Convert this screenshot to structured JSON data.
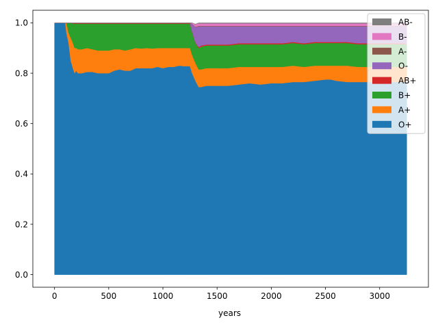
{
  "chart_data": {
    "type": "area",
    "stacked": true,
    "title": "",
    "xlabel": "years",
    "ylabel": "",
    "xlim": [
      -200,
      3450
    ],
    "ylim": [
      -0.05,
      1.05
    ],
    "xticks": [
      0,
      500,
      1000,
      1500,
      2000,
      2500,
      3000
    ],
    "xtick_labels": [
      "0",
      "500",
      "1000",
      "1500",
      "2000",
      "2500",
      "3000"
    ],
    "yticks": [
      0.0,
      0.2,
      0.4,
      0.6,
      0.8,
      1.0
    ],
    "ytick_labels": [
      "0.0",
      "0.2",
      "0.4",
      "0.6",
      "0.8",
      "1.0"
    ],
    "grid": false,
    "legend_position": "top-right",
    "x": [
      0,
      100,
      110,
      130,
      150,
      170,
      185,
      200,
      215,
      230,
      250,
      300,
      350,
      400,
      450,
      500,
      550,
      600,
      650,
      700,
      750,
      800,
      850,
      900,
      950,
      1000,
      1050,
      1100,
      1150,
      1200,
      1250,
      1270,
      1300,
      1330,
      1350,
      1400,
      1450,
      1500,
      1600,
      1700,
      1800,
      1900,
      2000,
      2100,
      2200,
      2300,
      2400,
      2500,
      2550,
      2600,
      2700,
      2800,
      2900,
      3000,
      3100,
      3200,
      3250
    ],
    "series": [
      {
        "name": "O+",
        "color": "#1f77b4",
        "values": [
          1.0,
          1.0,
          0.96,
          0.92,
          0.85,
          0.82,
          0.8,
          0.81,
          0.8,
          0.8,
          0.8,
          0.805,
          0.805,
          0.8,
          0.8,
          0.8,
          0.81,
          0.815,
          0.81,
          0.81,
          0.82,
          0.82,
          0.82,
          0.82,
          0.825,
          0.82,
          0.825,
          0.825,
          0.83,
          0.828,
          0.828,
          0.8,
          0.77,
          0.745,
          0.745,
          0.75,
          0.75,
          0.75,
          0.75,
          0.755,
          0.76,
          0.755,
          0.76,
          0.76,
          0.765,
          0.765,
          0.77,
          0.775,
          0.775,
          0.77,
          0.765,
          0.765,
          0.765,
          0.765,
          0.765,
          0.765,
          0.765
        ]
      },
      {
        "name": "A+",
        "color": "#ff7f0e",
        "values": [
          0.0,
          0.0,
          0.04,
          0.04,
          0.09,
          0.1,
          0.1,
          0.09,
          0.095,
          0.095,
          0.095,
          0.095,
          0.09,
          0.09,
          0.09,
          0.09,
          0.085,
          0.08,
          0.08,
          0.085,
          0.08,
          0.078,
          0.08,
          0.078,
          0.075,
          0.08,
          0.075,
          0.075,
          0.07,
          0.072,
          0.072,
          0.072,
          0.07,
          0.07,
          0.07,
          0.07,
          0.07,
          0.07,
          0.07,
          0.07,
          0.065,
          0.07,
          0.065,
          0.065,
          0.065,
          0.06,
          0.06,
          0.055,
          0.055,
          0.06,
          0.065,
          0.06,
          0.06,
          0.06,
          0.06,
          0.06,
          0.06
        ]
      },
      {
        "name": "B+",
        "color": "#2ca02c",
        "values": [
          0.0,
          0.0,
          0.0,
          0.04,
          0.06,
          0.077,
          0.097,
          0.097,
          0.102,
          0.102,
          0.102,
          0.097,
          0.102,
          0.107,
          0.107,
          0.107,
          0.102,
          0.102,
          0.107,
          0.102,
          0.097,
          0.099,
          0.097,
          0.099,
          0.097,
          0.097,
          0.097,
          0.097,
          0.097,
          0.097,
          0.097,
          0.09,
          0.08,
          0.085,
          0.09,
          0.09,
          0.09,
          0.09,
          0.09,
          0.09,
          0.09,
          0.09,
          0.09,
          0.09,
          0.09,
          0.09,
          0.09,
          0.09,
          0.09,
          0.09,
          0.09,
          0.09,
          0.09,
          0.09,
          0.09,
          0.09,
          0.09
        ]
      },
      {
        "name": "AB+",
        "color": "#d62728",
        "values": [
          0.0,
          0.0,
          0.0,
          0.0,
          0.0,
          0.002,
          0.002,
          0.002,
          0.002,
          0.002,
          0.002,
          0.002,
          0.002,
          0.002,
          0.002,
          0.002,
          0.002,
          0.002,
          0.002,
          0.002,
          0.002,
          0.002,
          0.002,
          0.002,
          0.002,
          0.002,
          0.002,
          0.002,
          0.002,
          0.002,
          0.002,
          0.002,
          0.002,
          0.004,
          0.004,
          0.004,
          0.004,
          0.004,
          0.004,
          0.004,
          0.004,
          0.004,
          0.004,
          0.004,
          0.004,
          0.004,
          0.004,
          0.004,
          0.004,
          0.004,
          0.004,
          0.004,
          0.004,
          0.004,
          0.004,
          0.004,
          0.004
        ]
      },
      {
        "name": "O-",
        "color": "#9467bd",
        "values": [
          0.0,
          0.0,
          0.0,
          0.0,
          0.0,
          0.0,
          0.0,
          0.0,
          0.0,
          0.0,
          0.0,
          0.0,
          0.0,
          0.0,
          0.0,
          0.0,
          0.0,
          0.0,
          0.0,
          0.0,
          0.0,
          0.0,
          0.0,
          0.0,
          0.0,
          0.0,
          0.0,
          0.0,
          0.0,
          0.0,
          0.0,
          0.03,
          0.06,
          0.082,
          0.077,
          0.072,
          0.072,
          0.072,
          0.072,
          0.067,
          0.067,
          0.067,
          0.067,
          0.067,
          0.062,
          0.067,
          0.062,
          0.062,
          0.062,
          0.062,
          0.062,
          0.067,
          0.067,
          0.067,
          0.067,
          0.067,
          0.067
        ]
      },
      {
        "name": "A-",
        "color": "#8c564b",
        "values": [
          0.0,
          0.0,
          0.0,
          0.0,
          0.0,
          0.001,
          0.001,
          0.001,
          0.001,
          0.001,
          0.001,
          0.001,
          0.001,
          0.001,
          0.001,
          0.001,
          0.001,
          0.001,
          0.001,
          0.001,
          0.001,
          0.001,
          0.001,
          0.001,
          0.001,
          0.001,
          0.001,
          0.001,
          0.001,
          0.001,
          0.001,
          0.002,
          0.002,
          0.002,
          0.002,
          0.002,
          0.002,
          0.002,
          0.002,
          0.002,
          0.002,
          0.002,
          0.002,
          0.002,
          0.002,
          0.002,
          0.002,
          0.002,
          0.002,
          0.002,
          0.002,
          0.002,
          0.002,
          0.002,
          0.002,
          0.002,
          0.002
        ]
      },
      {
        "name": "B-",
        "color": "#e377c2",
        "values": [
          0.0,
          0.0,
          0.0,
          0.0,
          0.0,
          0.0,
          0.0,
          0.0,
          0.0,
          0.0,
          0.0,
          0.0,
          0.0,
          0.0,
          0.0,
          0.0,
          0.0,
          0.0,
          0.0,
          0.0,
          0.0,
          0.0,
          0.0,
          0.0,
          0.0,
          0.0,
          0.0,
          0.0,
          0.0,
          0.0,
          0.0,
          0.004,
          0.01,
          0.01,
          0.01,
          0.01,
          0.01,
          0.01,
          0.01,
          0.01,
          0.01,
          0.01,
          0.01,
          0.01,
          0.01,
          0.01,
          0.01,
          0.01,
          0.01,
          0.01,
          0.01,
          0.01,
          0.01,
          0.01,
          0.01,
          0.01,
          0.01
        ]
      },
      {
        "name": "AB-",
        "color": "#7f7f7f",
        "values": [
          0.0,
          0.0,
          0.0,
          0.0,
          0.0,
          0.0,
          0.0,
          0.0,
          0.0,
          0.0,
          0.0,
          0.0,
          0.0,
          0.0,
          0.0,
          0.0,
          0.0,
          0.0,
          0.0,
          0.0,
          0.0,
          0.0,
          0.0,
          0.0,
          0.0,
          0.0,
          0.0,
          0.0,
          0.0,
          0.0,
          0.0,
          0.0,
          0.001,
          0.002,
          0.002,
          0.002,
          0.002,
          0.002,
          0.002,
          0.002,
          0.002,
          0.002,
          0.002,
          0.002,
          0.002,
          0.002,
          0.002,
          0.002,
          0.002,
          0.002,
          0.002,
          0.002,
          0.002,
          0.002,
          0.002,
          0.002,
          0.002
        ]
      }
    ]
  }
}
